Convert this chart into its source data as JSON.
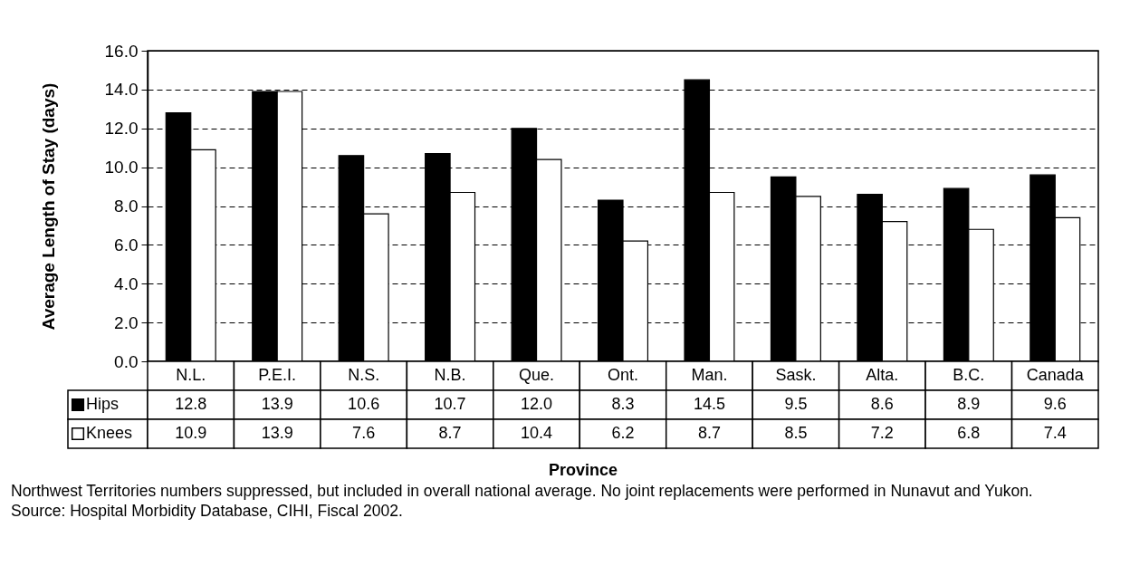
{
  "chart_data": {
    "type": "bar",
    "ylabel": "Average Length of Stay (days)",
    "categories": [
      "N.L.",
      "P.E.I.",
      "N.S.",
      "N.B.",
      "Que.",
      "Ont.",
      "Man.",
      "Sask.",
      "Alta.",
      "B.C.",
      "Canada"
    ],
    "series": [
      {
        "name": "Hips",
        "color": "#000000",
        "values": [
          12.8,
          13.9,
          10.6,
          10.7,
          12.0,
          8.3,
          14.5,
          9.5,
          8.6,
          8.9,
          9.6
        ],
        "value_labels": [
          "12.8",
          "13.9",
          "10.6",
          "10.7",
          "12.0",
          "8.3",
          "14.5",
          "9.5",
          "8.6",
          "8.9",
          "9.6"
        ]
      },
      {
        "name": "Knees",
        "color": "#ffffff",
        "values": [
          10.9,
          13.9,
          7.6,
          8.7,
          10.4,
          6.2,
          8.7,
          8.5,
          7.2,
          6.8,
          7.4
        ],
        "value_labels": [
          "10.9",
          "13.9",
          "7.6",
          "8.7",
          "10.4",
          "6.2",
          "8.7",
          "8.5",
          "7.2",
          "6.8",
          "7.4"
        ]
      }
    ],
    "ylim": [
      0,
      16
    ],
    "yticks": [
      {
        "value": 0,
        "label": "0.0"
      },
      {
        "value": 2,
        "label": "2.0"
      },
      {
        "value": 4,
        "label": "4.0"
      },
      {
        "value": 6,
        "label": "6.0"
      },
      {
        "value": 8,
        "label": "8.0"
      },
      {
        "value": 10,
        "label": "10.0"
      },
      {
        "value": 12,
        "label": "12.0"
      },
      {
        "value": 14,
        "label": "14.0"
      },
      {
        "value": 16,
        "label": "16.0"
      }
    ],
    "grid": "y",
    "legend": "bottom left",
    "annotations": [
      "Province",
      "Northwest Territories numbers suppressed, but included in overall national average. No joint replacements were performed in Nunavut and Yukon.",
      "Source: Hospital Morbidity Database, CIHI, Fiscal 2002."
    ]
  }
}
